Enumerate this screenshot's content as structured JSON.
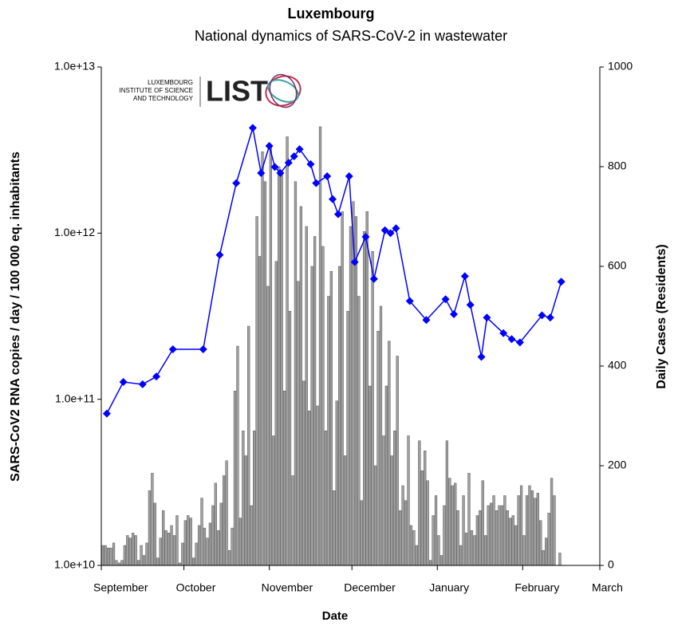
{
  "chart_data": {
    "type": "combo",
    "title": "Luxembourg",
    "subtitle": "National dynamics of SARS-CoV-2 in wastewater",
    "x_label": "Date",
    "y_label": "SARS-CoV2 RNA copies / day  / 100 000 eq. inhabitants",
    "y2_label": "Daily Cases (Residents)",
    "logo_text": [
      "LUXEMBOURG",
      "INSTITUTE OF SCIENCE",
      "AND TECHNOLOGY"
    ],
    "logo_name": "LIST",
    "xlim": [
      0,
      181
    ],
    "xticks": [
      {
        "value": 0,
        "label": "September"
      },
      {
        "value": 30,
        "label": "October"
      },
      {
        "value": 61,
        "label": "November"
      },
      {
        "value": 91,
        "label": "December"
      },
      {
        "value": 122,
        "label": "January"
      },
      {
        "value": 153,
        "label": "February"
      },
      {
        "value": 181,
        "label": "March"
      }
    ],
    "ylim": [
      10000000000,
      10000000000000
    ],
    "log_y": true,
    "yticks": [
      {
        "value": 10000000000,
        "label": "1.0e+10"
      },
      {
        "value": 100000000000,
        "label": "1.0e+11"
      },
      {
        "value": 1000000000000,
        "label": "1.0e+12"
      },
      {
        "value": 10000000000000,
        "label": "1.0e+13"
      }
    ],
    "y2lim": [
      0,
      1000
    ],
    "y2ticks": [
      0,
      200,
      400,
      600,
      800,
      1000
    ],
    "series": [
      {
        "kind": "bar",
        "axis": "y2",
        "color": "#a0a0a0",
        "x": [
          0,
          1,
          2,
          3,
          4,
          5,
          6,
          7,
          8,
          9,
          10,
          11,
          12,
          13,
          14,
          15,
          16,
          17,
          18,
          19,
          20,
          21,
          22,
          23,
          24,
          25,
          26,
          27,
          28,
          29,
          30,
          31,
          32,
          33,
          34,
          35,
          36,
          37,
          38,
          39,
          40,
          41,
          42,
          43,
          44,
          45,
          46,
          47,
          48,
          49,
          50,
          51,
          52,
          53,
          54,
          55,
          56,
          57,
          58,
          59,
          60,
          61,
          62,
          63,
          64,
          65,
          66,
          67,
          68,
          69,
          70,
          71,
          72,
          73,
          74,
          75,
          76,
          77,
          78,
          79,
          80,
          81,
          82,
          83,
          84,
          85,
          86,
          87,
          88,
          89,
          90,
          91,
          92,
          93,
          94,
          95,
          96,
          97,
          98,
          99,
          100,
          101,
          102,
          103,
          104,
          105,
          106,
          107,
          108,
          109,
          110,
          111,
          112,
          113,
          114,
          115,
          116,
          117,
          118,
          119,
          120,
          121,
          122,
          123,
          124,
          125,
          126,
          127,
          128,
          129,
          130,
          131,
          132,
          133,
          134,
          135,
          136,
          137,
          138,
          139,
          140,
          141,
          142,
          143,
          144,
          145,
          146,
          147,
          148,
          149,
          150,
          151,
          152,
          153,
          154,
          155,
          156,
          157,
          158,
          159,
          160,
          161,
          162,
          163,
          164,
          165,
          166
        ],
        "values": [
          40,
          40,
          35,
          35,
          45,
          10,
          5,
          10,
          40,
          60,
          55,
          65,
          60,
          10,
          40,
          20,
          45,
          150,
          185,
          125,
          15,
          55,
          110,
          70,
          65,
          80,
          60,
          100,
          5,
          45,
          90,
          100,
          95,
          15,
          45,
          80,
          135,
          75,
          55,
          85,
          120,
          165,
          70,
          125,
          180,
          210,
          30,
          75,
          350,
          440,
          95,
          270,
          220,
          480,
          120,
          270,
          700,
          620,
          830,
          770,
          560,
          840,
          260,
          610,
          800,
          790,
          350,
          860,
          510,
          180,
          770,
          570,
          720,
          370,
          680,
          310,
          600,
          660,
          320,
          880,
          640,
          270,
          540,
          590,
          150,
          330,
          600,
          710,
          220,
          510,
          680,
          730,
          700,
          540,
          130,
          670,
          710,
          360,
          630,
          200,
          470,
          520,
          260,
          360,
          450,
          220,
          270,
          420,
          110,
          160,
          130,
          260,
          80,
          70,
          40,
          250,
          190,
          230,
          170,
          10,
          100,
          140,
          60,
          20,
          120,
          250,
          175,
          160,
          165,
          110,
          40,
          140,
          65,
          185,
          70,
          60,
          100,
          110,
          170,
          60,
          120,
          125,
          140,
          110,
          120,
          120,
          140,
          110,
          95,
          100,
          80,
          140,
          160,
          60,
          140,
          160,
          150,
          135,
          145,
          90,
          30,
          55,
          105,
          175,
          140,
          0,
          25
        ]
      },
      {
        "kind": "line",
        "axis": "y",
        "color": "#0000ff",
        "x": [
          2,
          8,
          15,
          20,
          26,
          37,
          43,
          49,
          55,
          58,
          61,
          63,
          65,
          68,
          70,
          72,
          76,
          78,
          82,
          84,
          86,
          90,
          92,
          96,
          99,
          103,
          105,
          107,
          112,
          118,
          125,
          128,
          132,
          134,
          138,
          140,
          146,
          149,
          152,
          160,
          163,
          167
        ],
        "values": [
          82000000000,
          127000000000,
          123000000000,
          137000000000,
          200000000000,
          200000000000,
          740000000000,
          2000000000000,
          4300000000000,
          2300000000000,
          3350000000000,
          2500000000000,
          2300000000000,
          2650000000000,
          2900000000000,
          3200000000000,
          2600000000000,
          2000000000000,
          2200000000000,
          1600000000000,
          1300000000000,
          2200000000000,
          670000000000,
          950000000000,
          530000000000,
          1040000000000,
          1000000000000,
          1070000000000,
          390000000000,
          300000000000,
          400000000000,
          325000000000,
          550000000000,
          370000000000,
          180000000000,
          310000000000,
          250000000000,
          230000000000,
          220000000000,
          320000000000,
          310000000000,
          510000000000
        ]
      }
    ]
  }
}
